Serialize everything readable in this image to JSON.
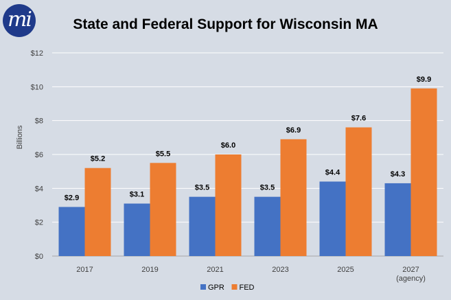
{
  "logo": {
    "text": "mi",
    "color": "#1f3a8a"
  },
  "chart_data": {
    "type": "bar",
    "title": "State and Federal Support for Wisconsin MA",
    "ylabel": "Billions",
    "xlabel": "",
    "ylim": [
      0,
      12
    ],
    "yticks": [
      "$0",
      "$2",
      "$4",
      "$6",
      "$8",
      "$10",
      "$12"
    ],
    "grid": true,
    "legend": "bottom",
    "categories": [
      [
        "2017"
      ],
      [
        "2019"
      ],
      [
        "2021"
      ],
      [
        "2023"
      ],
      [
        "2025"
      ],
      [
        "2027",
        "(agency)"
      ]
    ],
    "series": [
      {
        "name": "GPR",
        "color": "#4472c4",
        "values": [
          2.9,
          3.1,
          3.5,
          3.5,
          4.4,
          4.3
        ],
        "labels": [
          "$2.9",
          "$3.1",
          "$3.5",
          "$3.5",
          "$4.4",
          "$4.3"
        ]
      },
      {
        "name": "FED",
        "color": "#ed7d31",
        "values": [
          5.2,
          5.5,
          6.0,
          6.9,
          7.6,
          9.9
        ],
        "labels": [
          "$5.2",
          "$5.5",
          "$6.0",
          "$6.9",
          "$7.6",
          "$9.9"
        ]
      }
    ]
  }
}
